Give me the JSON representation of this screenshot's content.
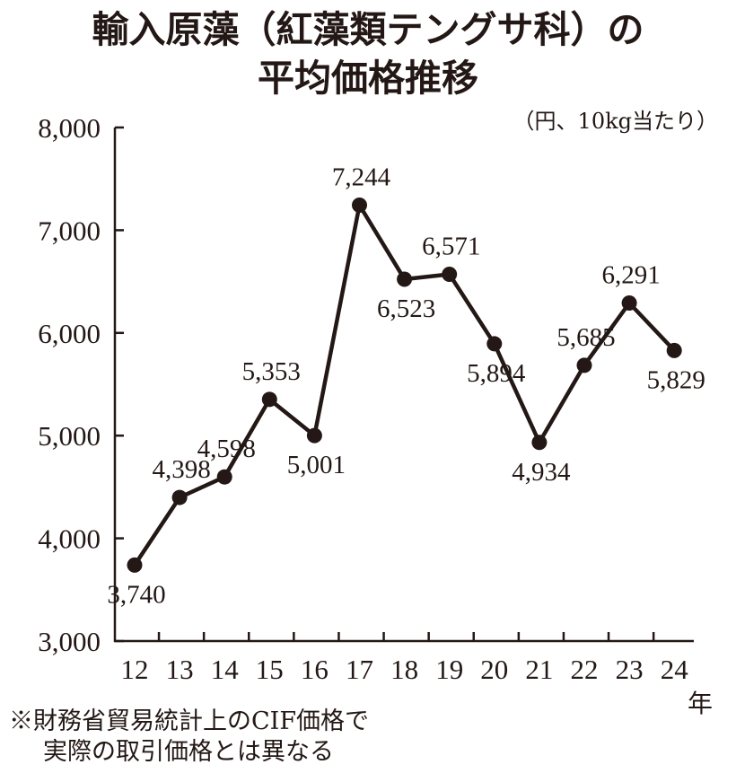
{
  "title_line1": "輸入原藻（紅藻類テングサ科）の",
  "title_line2": "平均価格推移",
  "unit_label": "（円、10kg当たり）",
  "x_unit": "年",
  "note_line1": "※財務省貿易統計上のCIF価格で",
  "note_line2": "実際の取引価格とは異なる",
  "colors": {
    "ink": "#231815"
  },
  "chart_data": {
    "type": "line",
    "categories": [
      "12",
      "13",
      "14",
      "15",
      "16",
      "17",
      "18",
      "19",
      "20",
      "21",
      "22",
      "23",
      "24"
    ],
    "values": [
      3740,
      4398,
      4598,
      5353,
      5001,
      7244,
      6523,
      6571,
      5894,
      4934,
      5685,
      6291,
      5829
    ],
    "value_labels": [
      "3,740",
      "4,398",
      "4,598",
      "5,353",
      "5,001",
      "7,244",
      "6,523",
      "6,571",
      "5,894",
      "4,934",
      "5,685",
      "6,291",
      "5,829"
    ],
    "y_ticks": [
      3000,
      4000,
      5000,
      6000,
      7000,
      8000
    ],
    "y_tick_labels": [
      "3,000",
      "4,000",
      "5,000",
      "6,000",
      "7,000",
      "8,000"
    ],
    "ylim": [
      3000,
      8000
    ],
    "grid": false,
    "legend": "none"
  }
}
